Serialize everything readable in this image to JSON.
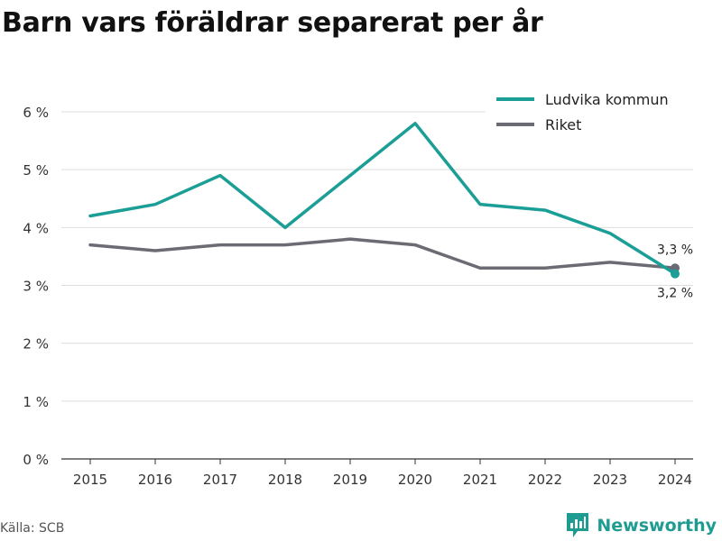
{
  "chart_data": {
    "type": "line",
    "title": "Barn vars föräldrar separerat per år",
    "x": [
      "2015",
      "2016",
      "2017",
      "2018",
      "2019",
      "2020",
      "2021",
      "2022",
      "2023",
      "2024"
    ],
    "ylim": [
      0,
      6
    ],
    "yticks": [
      0,
      1,
      2,
      3,
      4,
      5,
      6
    ],
    "ytick_suffix": " %",
    "grid": true,
    "legend": "top-right",
    "series": [
      {
        "name": "Ludvika kommun",
        "color": "#1a9e96",
        "values": [
          4.2,
          4.4,
          4.9,
          4.0,
          4.9,
          5.8,
          4.4,
          4.3,
          3.9,
          3.2
        ],
        "end_label": "3,2 %"
      },
      {
        "name": "Riket",
        "color": "#6b6b73",
        "values": [
          3.7,
          3.6,
          3.7,
          3.7,
          3.8,
          3.7,
          3.3,
          3.3,
          3.4,
          3.3
        ],
        "end_label": "3,3 %"
      }
    ]
  },
  "footer": {
    "source": "Källa: SCB",
    "brand": "Newsworthy"
  },
  "colors": {
    "grid": "#dddddd",
    "axis": "#333333",
    "brand": "#1f9c92"
  }
}
